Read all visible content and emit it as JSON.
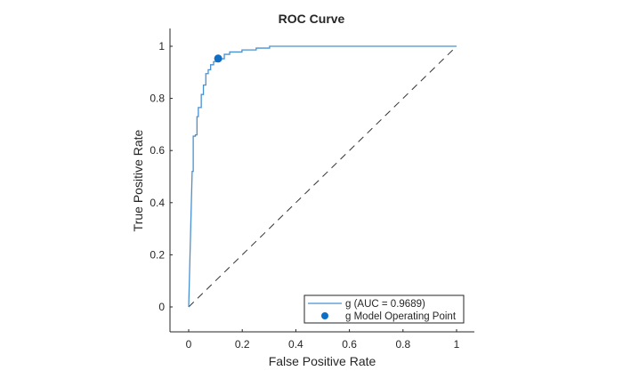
{
  "chart_data": {
    "type": "line",
    "title": "ROC Curve",
    "xlabel": "False Positive Rate",
    "ylabel": "True Positive Rate",
    "xlim": [
      -0.066,
      1.066
    ],
    "ylim": [
      -0.1,
      1.065
    ],
    "xticks": [
      0,
      0.2,
      0.4,
      0.6,
      0.8,
      1
    ],
    "xtick_labels": [
      "0",
      "0.2",
      "0.4",
      "0.6",
      "0.8",
      "1"
    ],
    "yticks": [
      0,
      0.2,
      0.4,
      0.6,
      0.8,
      1
    ],
    "ytick_labels": [
      "0",
      "0.2",
      "0.4",
      "0.6",
      "0.8",
      "1"
    ],
    "grid": false,
    "legend_position": "bottom-right",
    "series": [
      {
        "name": "g (AUC = 0.9689)",
        "color": "#4a90d0",
        "x": [
          0,
          0.013,
          0.017,
          0.017,
          0.025,
          0.025,
          0.031,
          0.031,
          0.036,
          0.036,
          0.047,
          0.047,
          0.055,
          0.055,
          0.064,
          0.064,
          0.073,
          0.073,
          0.082,
          0.082,
          0.093,
          0.093,
          0.11,
          0.11,
          0.133,
          0.133,
          0.153,
          0.153,
          0.199,
          0.199,
          0.252,
          0.252,
          0.302,
          0.302,
          1
        ],
        "y": [
          0,
          0.52,
          0.52,
          0.655,
          0.655,
          0.66,
          0.66,
          0.73,
          0.73,
          0.765,
          0.765,
          0.815,
          0.815,
          0.851,
          0.851,
          0.895,
          0.895,
          0.91,
          0.91,
          0.929,
          0.929,
          0.941,
          0.941,
          0.952,
          0.952,
          0.969,
          0.969,
          0.978,
          0.978,
          0.986,
          0.986,
          0.993,
          0.993,
          1.0,
          1.0
        ]
      },
      {
        "name": "g Model Operating Point",
        "type": "scatter",
        "color": "#0f6fc6",
        "x": [
          0.11
        ],
        "y": [
          0.953
        ]
      }
    ],
    "reference_line": {
      "x": [
        0,
        1
      ],
      "y": [
        0,
        1
      ],
      "style": "dashed",
      "color": "#333333"
    }
  }
}
